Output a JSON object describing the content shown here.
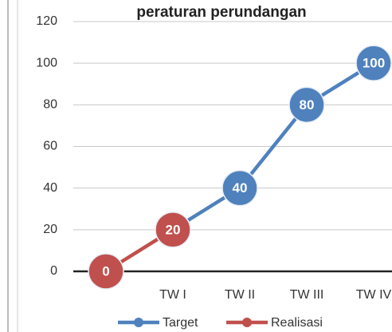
{
  "chart_data": {
    "type": "line",
    "title": "peraturan perundangan",
    "categories": [
      null,
      "TW I",
      "TW II",
      "TW III",
      "TW IV"
    ],
    "series": [
      {
        "name": "Target",
        "color": "#4f81bd",
        "values": [
          null,
          20,
          40,
          80,
          100
        ]
      },
      {
        "name": "Realisasi",
        "color": "#c0504d",
        "values": [
          0,
          20,
          null,
          null,
          null
        ]
      }
    ],
    "ylim": [
      0,
      120
    ],
    "yticks": [
      0,
      20,
      40,
      60,
      80,
      100,
      120
    ],
    "grid": true,
    "legend": "bottom"
  }
}
